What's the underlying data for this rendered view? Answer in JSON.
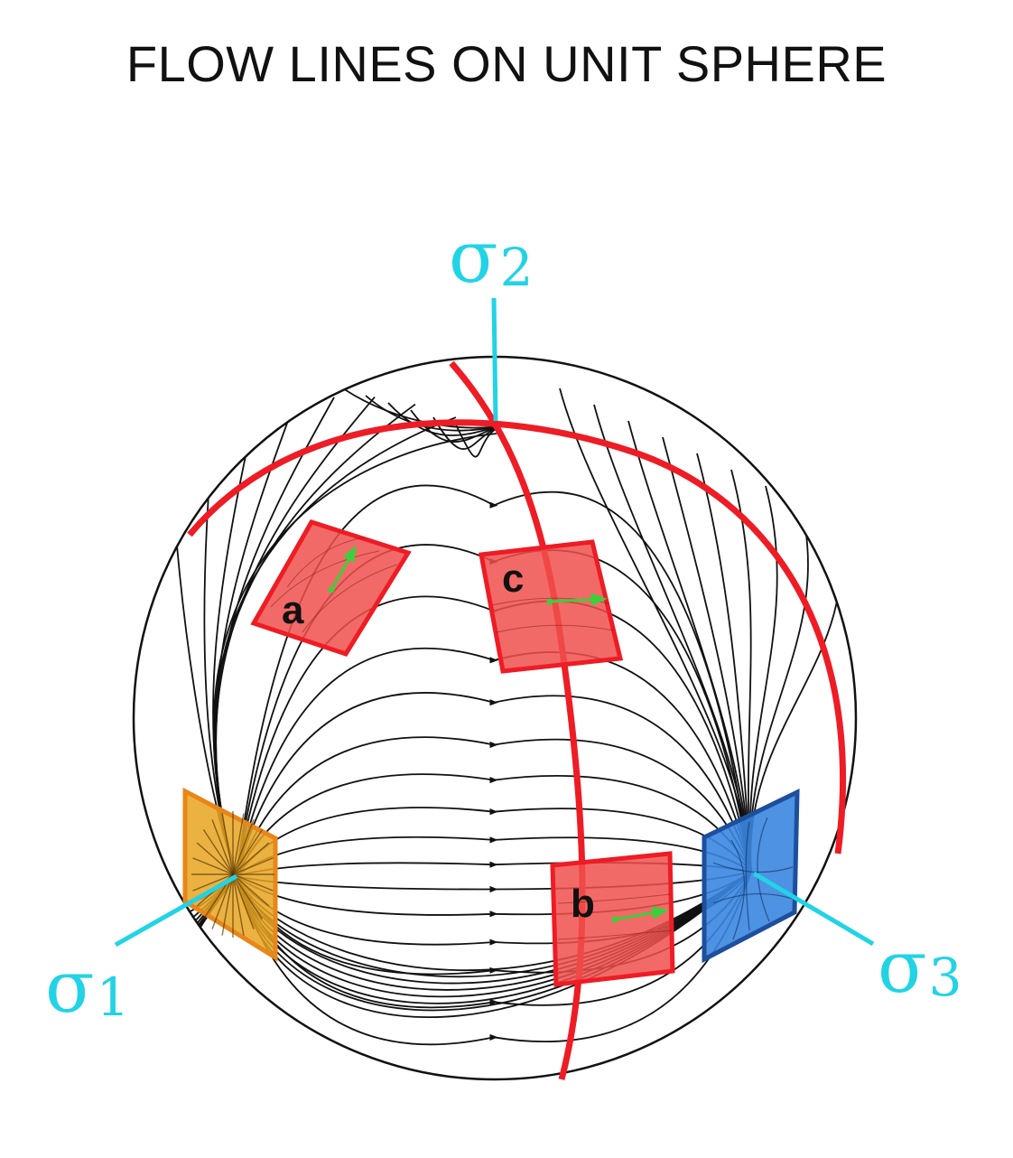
{
  "title": "FLOW LINES ON UNIT SPHERE",
  "axes": {
    "sigma1": {
      "symbol": "σ",
      "sub": "1"
    },
    "sigma2": {
      "symbol": "σ",
      "sub": "2"
    },
    "sigma3": {
      "symbol": "σ",
      "sub": "3"
    }
  },
  "patches": {
    "a": "a",
    "b": "b",
    "c": "c"
  },
  "colors": {
    "axis": "#22d3e6",
    "great_circle": "#ee1c25",
    "patch_red": "#f0504d",
    "patch_orange": "#e8a420",
    "patch_blue": "#3a86e0",
    "arrow_green": "#3ccf3c",
    "flow": "#111111"
  }
}
